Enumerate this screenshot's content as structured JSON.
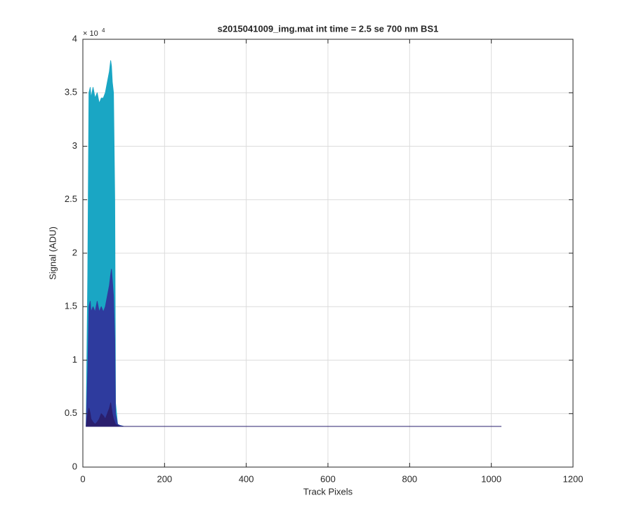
{
  "chart_data": {
    "type": "line",
    "title": "s2015041009_img.mat int time = 2.5 se  700 nm BS1",
    "x_label": "Track Pixels",
    "y_label": "Signal (ADU)",
    "y_multiplier": "× 10",
    "y_multiplier_exp": "4",
    "x": [
      8,
      12,
      15,
      18,
      20,
      25,
      30,
      35,
      40,
      45,
      50,
      55,
      60,
      65,
      68,
      70,
      72,
      75,
      78,
      80,
      85,
      90,
      100,
      1024
    ],
    "series": [
      {
        "color": "#1aa6c4",
        "values": [
          0.38,
          1.8,
          3.5,
          3.55,
          3.45,
          3.55,
          3.45,
          3.5,
          3.4,
          3.45,
          3.45,
          3.5,
          3.6,
          3.7,
          3.8,
          3.75,
          3.6,
          3.5,
          2.5,
          0.6,
          0.4,
          0.39,
          0.38,
          0.38
        ]
      },
      {
        "color": "#2e3b9e",
        "values": [
          0.38,
          0.9,
          1.5,
          1.55,
          1.45,
          1.5,
          1.45,
          1.55,
          1.45,
          1.5,
          1.45,
          1.5,
          1.6,
          1.7,
          1.8,
          1.85,
          1.75,
          1.6,
          1.2,
          0.5,
          0.4,
          0.39,
          0.38,
          0.38
        ]
      },
      {
        "color": "#2a1f6e",
        "values": [
          0.38,
          0.5,
          0.55,
          0.5,
          0.45,
          0.42,
          0.4,
          0.42,
          0.45,
          0.5,
          0.48,
          0.45,
          0.5,
          0.55,
          0.6,
          0.55,
          0.5,
          0.45,
          0.42,
          0.4,
          0.39,
          0.38,
          0.38,
          0.38
        ]
      }
    ],
    "xlim": [
      0,
      1200
    ],
    "xticks": [
      0,
      200,
      400,
      600,
      800,
      1000,
      1200
    ],
    "ylim": [
      0,
      4
    ],
    "yticks": [
      0,
      0.5,
      1,
      1.5,
      2,
      2.5,
      3,
      3.5,
      4
    ],
    "grid": true
  }
}
